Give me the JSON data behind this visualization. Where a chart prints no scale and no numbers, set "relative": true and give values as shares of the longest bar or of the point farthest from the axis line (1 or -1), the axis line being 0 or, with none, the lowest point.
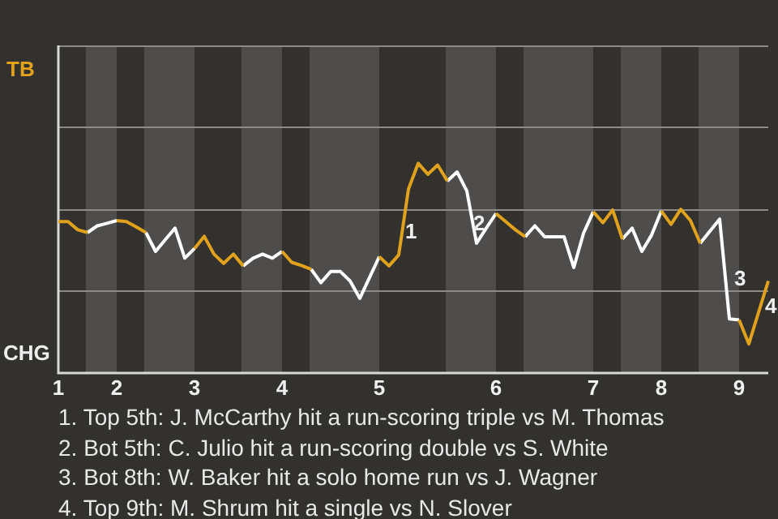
{
  "chart_data": {
    "type": "line",
    "marker": "none",
    "relative": true,
    "legend": false,
    "categories": [
      "1",
      null,
      null,
      null,
      null,
      null,
      "2",
      null,
      null,
      null,
      null,
      null,
      null,
      null,
      "3",
      null,
      null,
      null,
      null,
      null,
      null,
      null,
      null,
      "4",
      null,
      null,
      null,
      null,
      null,
      null,
      null,
      null,
      null,
      "5",
      null,
      null,
      null,
      null,
      null,
      null,
      null,
      null,
      null,
      null,
      null,
      "6",
      null,
      null,
      null,
      null,
      null,
      null,
      null,
      null,
      null,
      "7",
      null,
      null,
      null,
      null,
      null,
      null,
      "8",
      null,
      null,
      null,
      null,
      null,
      null,
      null,
      "9",
      null,
      null,
      null
    ],
    "series": [
      {
        "color": "#e0a21c",
        "values": [
          0.722,
          0.722,
          0.683,
          0.67,
          null,
          null,
          0.727,
          0.722,
          0.697,
          0.67,
          null,
          null,
          null,
          null,
          0.594,
          0.652,
          0.567,
          0.523,
          0.567,
          0.511,
          null,
          null,
          null,
          0.58,
          0.528,
          0.513,
          0.495,
          null,
          null,
          null,
          null,
          null,
          null,
          0.555,
          0.511,
          0.563,
          0.877,
          1,
          0.948,
          0.992,
          0.916,
          null,
          null,
          null,
          null,
          0.761,
          0.722,
          0.683,
          0.65,
          null,
          null,
          null,
          null,
          null,
          null,
          0.769,
          0.717,
          0.778,
          0.639,
          null,
          null,
          null,
          0.773,
          0.709,
          0.781,
          0.727,
          0.619,
          null,
          null,
          null,
          0.253,
          0.139,
          0.289,
          0.439
        ]
      },
      {
        "color": "#ffffff",
        "values": [
          null,
          null,
          null,
          0.67,
          0.702,
          0.714,
          0.727,
          null,
          null,
          0.67,
          0.58,
          0.636,
          0.691,
          0.548,
          0.594,
          null,
          null,
          null,
          null,
          0.511,
          0.547,
          0.567,
          0.548,
          0.58,
          null,
          null,
          0.495,
          0.431,
          0.484,
          0.484,
          0.439,
          0.356,
          0.456,
          0.555,
          null,
          null,
          null,
          null,
          null,
          null,
          0.916,
          0.959,
          0.869,
          0.619,
          0.691,
          0.761,
          null,
          null,
          0.65,
          0.702,
          0.65,
          0.65,
          0.65,
          0.503,
          0.666,
          0.769,
          null,
          null,
          0.639,
          0.691,
          0.58,
          0.658,
          0.773,
          null,
          null,
          null,
          0.619,
          0.677,
          0.734,
          0.258,
          0.253,
          null,
          null,
          null
        ]
      }
    ],
    "ref_lines": [
      {
        "axis": "y",
        "value": 0.391,
        "color": "#8c8b89"
      },
      {
        "axis": "y",
        "value": 0.781,
        "color": "#8c8b89"
      },
      {
        "axis": "y",
        "value": 1.172,
        "color": "#8c8b89"
      }
    ],
    "annotations": [
      "TB",
      "CHG",
      "1",
      "2",
      "3",
      "4",
      "1. Top 5th: J. McCarthy hit a run-scoring triple vs M. Thomas",
      "2. Bot 5th: C. Julio hit a run-scoring double vs S. White",
      "3. Bot 8th: W. Baker hit a solo home run vs J. Wagner",
      "4. Top 9th: M. Shrum hit a single vs N. Slover"
    ]
  }
}
